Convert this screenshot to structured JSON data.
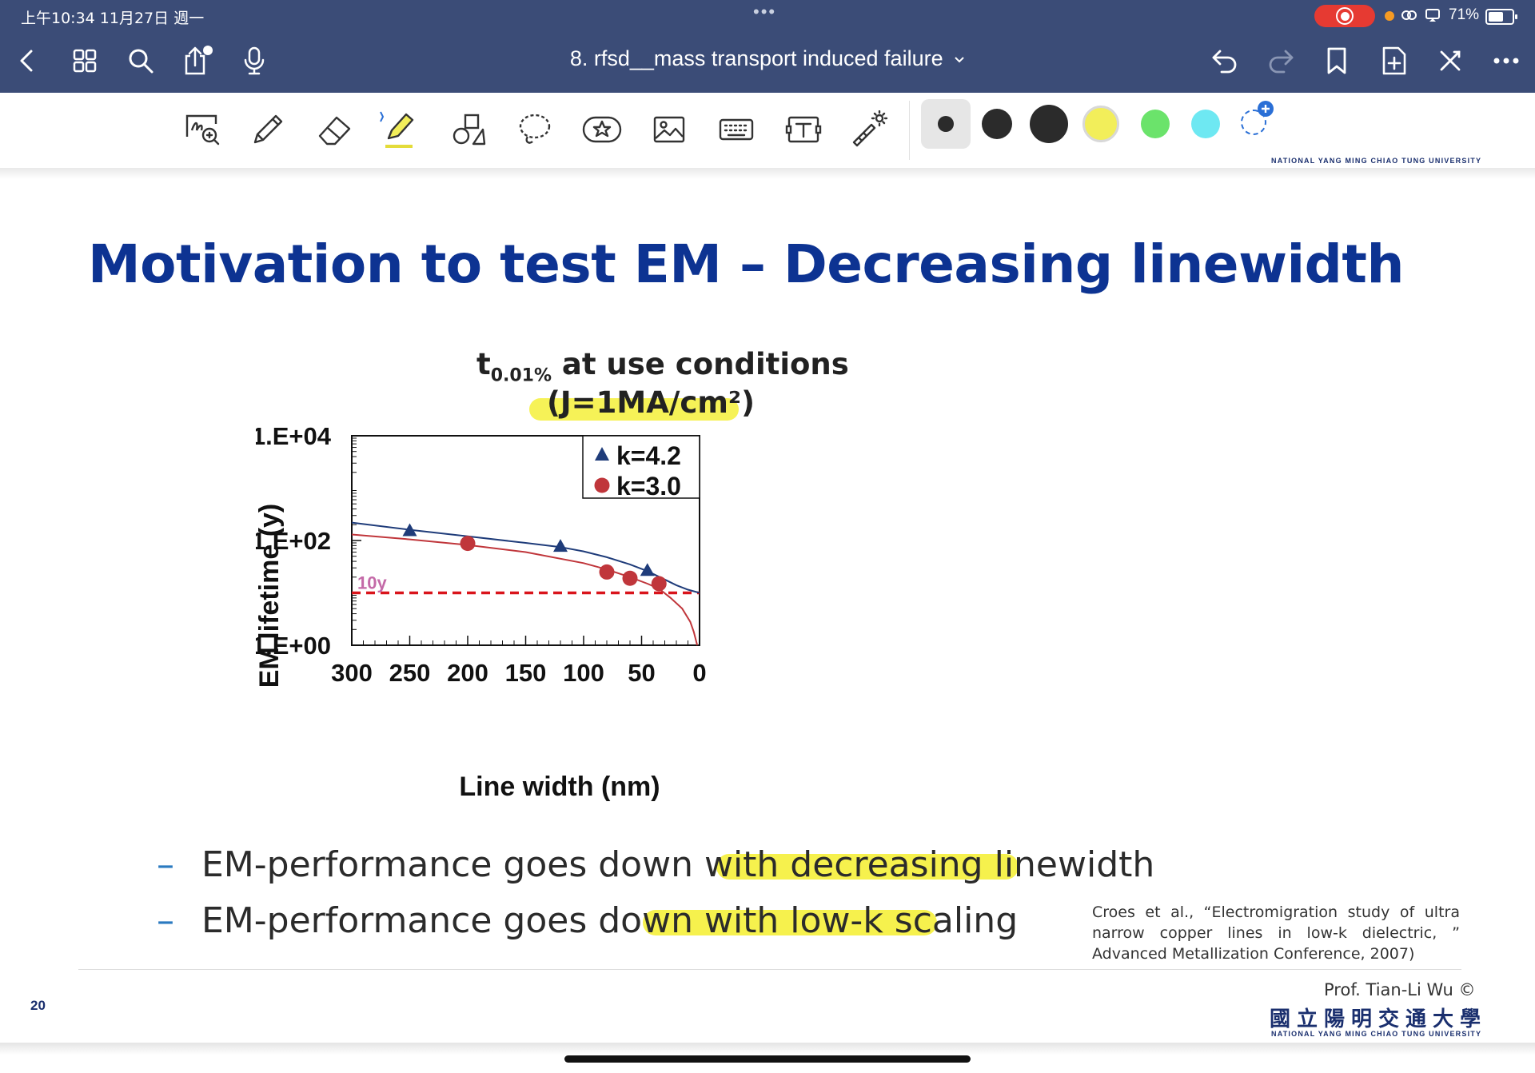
{
  "status_bar": {
    "time": "上午10:34   11月27日 週一",
    "dots": "•••",
    "battery": "71%",
    "battery_level": 0.71,
    "accent_record": "#e63a32"
  },
  "nav": {
    "title": "8. rfsd__mass transport induced failure",
    "icons": [
      "back-icon",
      "grid-icon",
      "search-icon",
      "share-icon",
      "microphone-icon",
      "undo-icon",
      "redo-icon",
      "bookmark-icon",
      "add-page-icon",
      "close-icon",
      "more-icon"
    ]
  },
  "toolbar": {
    "tools": [
      "handwriting-zoom-tool",
      "pen-tool",
      "eraser-tool",
      "highlighter-tool",
      "shapes-tool",
      "lasso-tool",
      "sticker-tool",
      "image-tool",
      "keyboard-tool",
      "text-tool",
      "laser-pointer-tool"
    ],
    "colors": [
      "#2b2b2b",
      "#2b2b2b",
      "#2b2b2b",
      "#f2ee5a",
      "#6be36b",
      "#6ee8f2"
    ],
    "header_university": "NATIONAL YANG MING CHIAO TUNG UNIVERSITY"
  },
  "slide": {
    "title": "Motivation to test EM – Decreasing linewidth",
    "bullets": [
      {
        "dash": "–",
        "before": "EM-performance goes down with ",
        "highlight": "decreasing linewidth"
      },
      {
        "dash": "–",
        "before": "EM-performance goes down ",
        "highlight": "with low-k scaling"
      }
    ],
    "citation": "Croes et al., “Electromigration study of ultra narrow copper lines in low-k dielectric, ” Advanced Metallization Conference, 2007)",
    "page_number": "20",
    "professor": "Prof. Tian-Li Wu ©",
    "university_cn": "國立陽明交通大學",
    "university_en": "NATIONAL YANG MING CHIAO TUNG UNIVERSITY"
  },
  "chart_data": {
    "type": "scatter",
    "title_main": "t",
    "title_sub": "0.01%",
    "title_rest": " at use conditions",
    "title_line2": "(J=1MA/cm²)",
    "xlabel": "Line width (nm)",
    "ylabel": "EM lifetime (y)",
    "x_ticks": [
      "300",
      "250",
      "200",
      "150",
      "100",
      "50",
      "0"
    ],
    "y_ticks": [
      "1.E+00",
      "1.E+02",
      "1.E+04"
    ],
    "xlim": [
      300,
      0
    ],
    "ylim": [
      1,
      10000
    ],
    "y_scale": "log",
    "legend_position": "top-right",
    "threshold": {
      "label": "10y",
      "value": 10,
      "color": "#d9141b"
    },
    "series": [
      {
        "name": "k=4.2",
        "marker": "triangle",
        "color": "#1f3c7a",
        "x": [
          250,
          120,
          45
        ],
        "y": [
          155,
          78,
          27
        ]
      },
      {
        "name": "k=3.0",
        "marker": "circle",
        "color": "#c0363b",
        "x": [
          200,
          80,
          60,
          35
        ],
        "y": [
          88,
          25,
          19,
          15
        ]
      }
    ],
    "fit_curves": [
      {
        "color": "#1f3c7a",
        "x": [
          300,
          250,
          200,
          150,
          120,
          100,
          80,
          60,
          45,
          30,
          20,
          10,
          0
        ],
        "y": [
          220,
          160,
          120,
          90,
          75,
          62,
          48,
          35,
          26,
          18,
          14,
          11.5,
          10
        ]
      },
      {
        "color": "#c0363b",
        "x": [
          300,
          250,
          200,
          150,
          100,
          80,
          60,
          45,
          35,
          25,
          15,
          8,
          5,
          2
        ],
        "y": [
          130,
          105,
          82,
          60,
          37,
          28,
          20,
          15,
          12,
          8,
          5,
          2.8,
          1.8,
          1
        ]
      }
    ]
  }
}
